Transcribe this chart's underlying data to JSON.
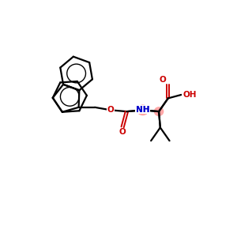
{
  "background_color": "#ffffff",
  "bond_color": "#000000",
  "N_color": "#0000cc",
  "O_color": "#cc0000",
  "highlight_fill": "#ff8888",
  "figsize": [
    3.0,
    3.0
  ],
  "dpi": 100,
  "xlim": [
    0,
    10
  ],
  "ylim": [
    0,
    10
  ]
}
